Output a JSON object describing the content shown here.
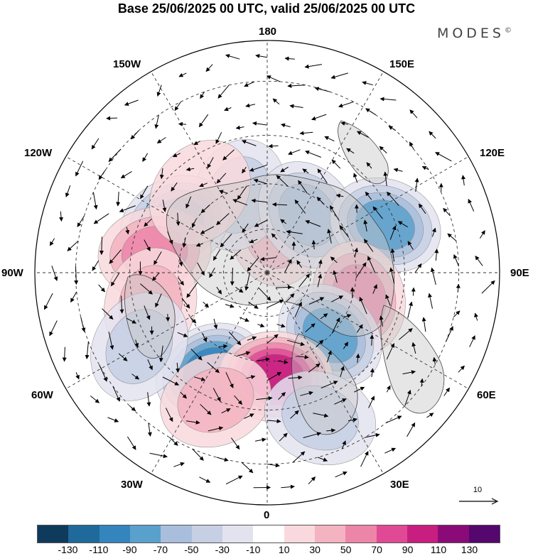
{
  "title": "Base 25/06/2025 00 UTC, valid 25/06/2025 00 UTC",
  "brand": "MODES",
  "brand_mark": "©",
  "longitude_labels": {
    "n180": "180",
    "w150": "150W",
    "e150": "150E",
    "w120": "120W",
    "e120": "120E",
    "w90": "90W",
    "e90": "90E",
    "w60": "60W",
    "e60": "60E",
    "w30": "30W",
    "e30": "30E",
    "s0": "0"
  },
  "reference_vector": "10",
  "colorbar": {
    "colors": [
      "#0e3a5c",
      "#1f6a9a",
      "#3484bd",
      "#5aa0cc",
      "#a9bedc",
      "#c6cfe4",
      "#e3e3f0",
      "#ffffff",
      "#f9d9dd",
      "#f3b3c1",
      "#ec85a8",
      "#e04a95",
      "#c81e80",
      "#8a0a78",
      "#54076d"
    ],
    "labels": [
      "-130",
      "-110",
      "-90",
      "-70",
      "-50",
      "-30",
      "-10",
      "10",
      "30",
      "50",
      "70",
      "90",
      "110",
      "130"
    ]
  },
  "anomaly_centers": [
    {
      "lat": 75,
      "lon": 170,
      "value": 40
    },
    {
      "lat": 62,
      "lon": -160,
      "value": -40
    },
    {
      "lat": 66,
      "lon": 145,
      "value": -60
    },
    {
      "lat": 55,
      "lon": -118,
      "value": -90
    },
    {
      "lat": 52,
      "lon": -100,
      "value": 70
    },
    {
      "lat": 48,
      "lon": 112,
      "value": -80
    },
    {
      "lat": 58,
      "lon": 75,
      "value": 70
    },
    {
      "lat": 60,
      "lon": 45,
      "value": -80
    },
    {
      "lat": 52,
      "lon": -30,
      "value": -100
    },
    {
      "lat": 55,
      "lon": 5,
      "value": 100
    },
    {
      "lat": 45,
      "lon": -22,
      "value": 40
    },
    {
      "lat": 40,
      "lon": 20,
      "value": -40
    },
    {
      "lat": 50,
      "lon": -75,
      "value": 50
    },
    {
      "lat": 42,
      "lon": -60,
      "value": -40
    },
    {
      "lat": 55,
      "lon": -140,
      "value": 30
    }
  ]
}
